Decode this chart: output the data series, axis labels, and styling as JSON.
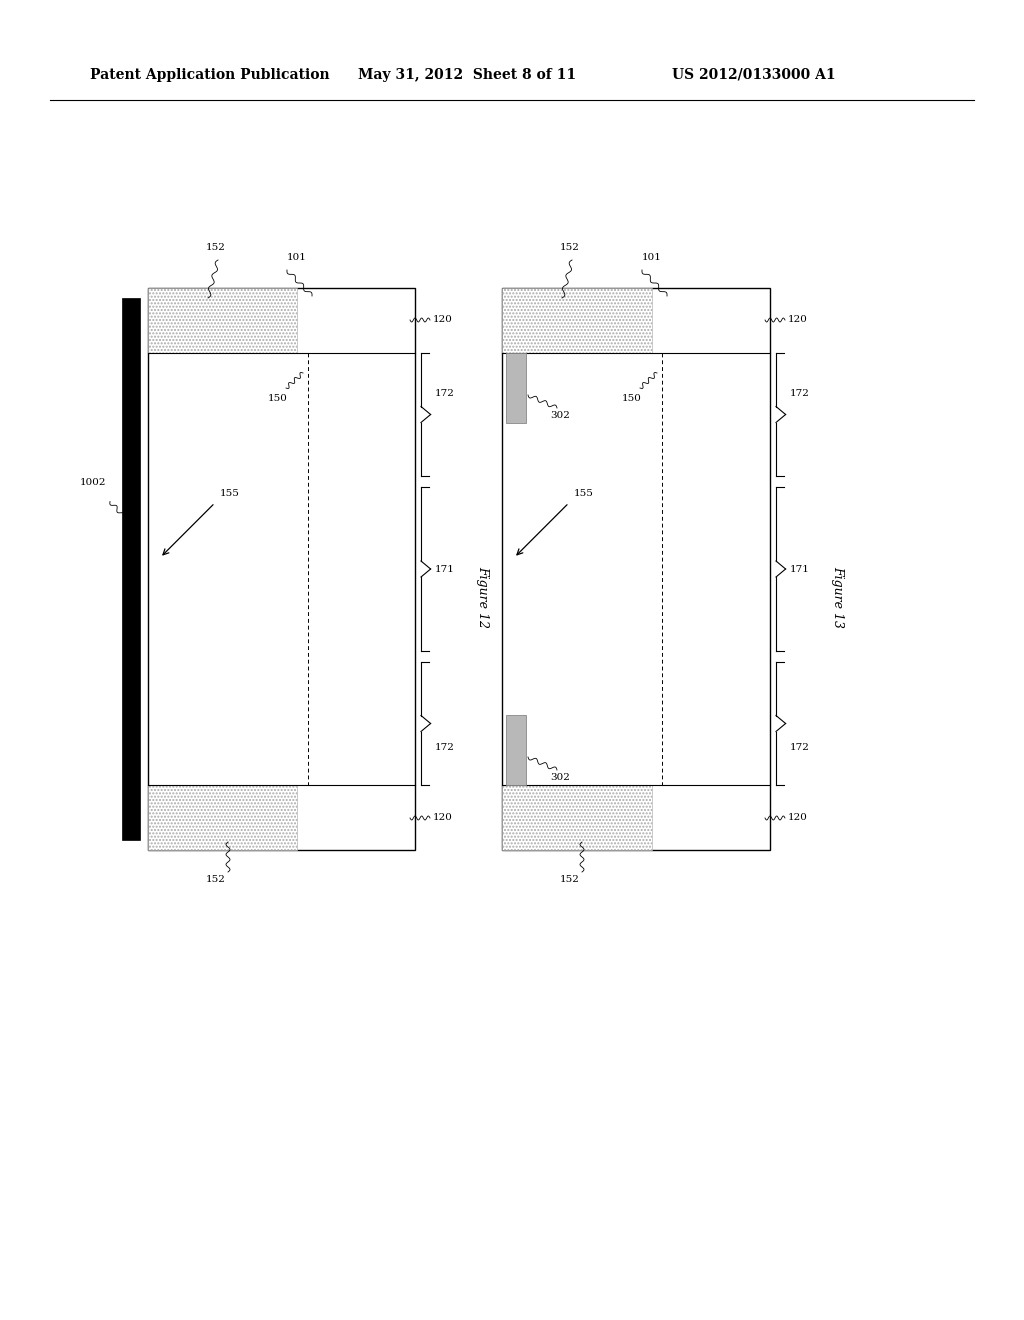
{
  "background_color": "#ffffff",
  "header_text": "Patent Application Publication",
  "header_date": "May 31, 2012  Sheet 8 of 11",
  "header_patent": "US 2012/0133000 A1",
  "fig12_label": "Figure 12",
  "fig13_label": "Figure 13",
  "hatch_pattern": ".....",
  "hatch_color": "#c0c0c0",
  "label_fontsize": 7.5,
  "caption_fontsize": 9
}
